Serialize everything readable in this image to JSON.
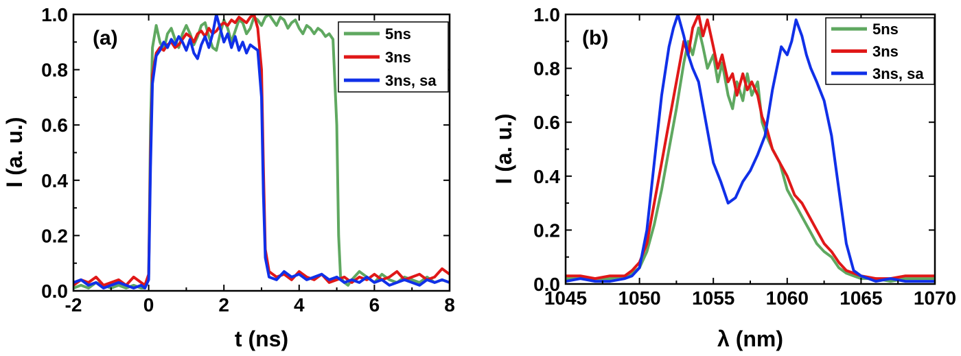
{
  "chart_data": [
    {
      "type": "line",
      "panel_label": "(a)",
      "xlabel": "t (ns)",
      "ylabel": "I (a. u.)",
      "xlim": [
        -2,
        8
      ],
      "ylim": [
        0,
        1.0
      ],
      "xticks": [
        -2,
        0,
        2,
        4,
        6,
        8
      ],
      "yticks": [
        0.0,
        0.2,
        0.4,
        0.6,
        0.8,
        1.0
      ],
      "xtick_labels": [
        "-2",
        "0",
        "2",
        "4",
        "6",
        "8"
      ],
      "ytick_labels": [
        "0.0",
        "0.2",
        "0.4",
        "0.6",
        "0.8",
        "1.0"
      ],
      "legend_position": "top-right",
      "grid": false,
      "series": [
        {
          "name": "5ns",
          "color": "#5fa860",
          "x": [
            -2.0,
            -1.8,
            -1.6,
            -1.4,
            -1.2,
            -1.0,
            -0.8,
            -0.6,
            -0.4,
            -0.2,
            -0.1,
            0.0,
            0.05,
            0.1,
            0.2,
            0.3,
            0.4,
            0.5,
            0.6,
            0.7,
            0.8,
            0.9,
            1.0,
            1.1,
            1.2,
            1.3,
            1.4,
            1.5,
            1.6,
            1.7,
            1.8,
            1.9,
            2.0,
            2.1,
            2.2,
            2.3,
            2.4,
            2.5,
            2.6,
            2.7,
            2.8,
            2.9,
            3.0,
            3.1,
            3.2,
            3.3,
            3.4,
            3.5,
            3.6,
            3.7,
            3.8,
            3.9,
            4.0,
            4.1,
            4.2,
            4.3,
            4.4,
            4.5,
            4.6,
            4.7,
            4.8,
            4.9,
            5.0,
            5.05,
            5.1,
            5.2,
            5.3,
            5.4,
            5.6,
            5.8,
            6.0,
            6.2,
            6.4,
            6.6,
            6.8,
            7.0,
            7.2,
            7.4,
            7.6,
            7.8,
            8.0
          ],
          "y": [
            0.01,
            0.02,
            0.01,
            0.03,
            0.02,
            0.01,
            0.02,
            0.01,
            0.02,
            0.01,
            0.01,
            0.05,
            0.6,
            0.88,
            0.96,
            0.9,
            0.87,
            0.93,
            0.95,
            0.91,
            0.88,
            0.93,
            0.96,
            0.93,
            0.89,
            0.92,
            0.96,
            0.97,
            0.92,
            0.88,
            0.87,
            0.93,
            0.98,
            0.95,
            0.9,
            0.94,
            0.98,
            0.97,
            0.93,
            0.95,
            0.99,
            0.98,
            0.96,
            0.99,
            1.0,
            0.98,
            0.96,
            0.99,
            0.98,
            0.95,
            0.97,
            0.98,
            0.95,
            0.93,
            0.96,
            0.95,
            0.93,
            0.95,
            0.94,
            0.92,
            0.93,
            0.91,
            0.6,
            0.2,
            0.05,
            0.03,
            0.02,
            0.04,
            0.07,
            0.05,
            0.03,
            0.06,
            0.04,
            0.03,
            0.05,
            0.04,
            0.03,
            0.05,
            0.03,
            0.04,
            0.03
          ]
        },
        {
          "name": "3ns",
          "color": "#e01818",
          "x": [
            -2.0,
            -1.8,
            -1.6,
            -1.4,
            -1.2,
            -1.0,
            -0.8,
            -0.6,
            -0.4,
            -0.2,
            -0.1,
            0.0,
            0.05,
            0.1,
            0.2,
            0.3,
            0.4,
            0.5,
            0.6,
            0.7,
            0.8,
            0.9,
            1.0,
            1.1,
            1.2,
            1.3,
            1.4,
            1.5,
            1.6,
            1.7,
            1.8,
            1.9,
            2.0,
            2.1,
            2.2,
            2.3,
            2.4,
            2.5,
            2.6,
            2.7,
            2.8,
            2.9,
            3.0,
            3.05,
            3.1,
            3.2,
            3.4,
            3.6,
            3.8,
            4.0,
            4.2,
            4.4,
            4.6,
            4.8,
            5.0,
            5.2,
            5.4,
            5.6,
            5.8,
            6.0,
            6.2,
            6.4,
            6.6,
            6.8,
            7.0,
            7.2,
            7.4,
            7.6,
            7.8,
            8.0
          ],
          "y": [
            0.02,
            0.04,
            0.03,
            0.05,
            0.02,
            0.03,
            0.04,
            0.02,
            0.05,
            0.03,
            0.02,
            0.06,
            0.5,
            0.78,
            0.86,
            0.88,
            0.87,
            0.89,
            0.9,
            0.88,
            0.89,
            0.91,
            0.93,
            0.92,
            0.9,
            0.93,
            0.94,
            0.92,
            0.95,
            0.93,
            0.94,
            0.96,
            0.97,
            0.96,
            0.98,
            0.97,
            0.99,
            0.98,
            0.97,
            0.99,
            1.0,
            0.95,
            0.8,
            0.45,
            0.15,
            0.07,
            0.05,
            0.06,
            0.04,
            0.07,
            0.05,
            0.04,
            0.06,
            0.03,
            0.04,
            0.05,
            0.03,
            0.05,
            0.04,
            0.06,
            0.04,
            0.05,
            0.07,
            0.04,
            0.05,
            0.06,
            0.04,
            0.05,
            0.08,
            0.06
          ]
        },
        {
          "name": "3ns, sa",
          "color": "#1030e8",
          "x": [
            -2.0,
            -1.8,
            -1.6,
            -1.4,
            -1.2,
            -1.0,
            -0.8,
            -0.6,
            -0.4,
            -0.2,
            -0.1,
            0.0,
            0.05,
            0.1,
            0.2,
            0.3,
            0.4,
            0.5,
            0.6,
            0.7,
            0.8,
            0.9,
            1.0,
            1.1,
            1.2,
            1.3,
            1.4,
            1.5,
            1.6,
            1.7,
            1.8,
            1.9,
            2.0,
            2.1,
            2.2,
            2.3,
            2.4,
            2.5,
            2.6,
            2.7,
            2.8,
            2.9,
            3.0,
            3.05,
            3.1,
            3.2,
            3.4,
            3.6,
            3.8,
            4.0,
            4.2,
            4.4,
            4.6,
            4.8,
            5.0,
            5.2,
            5.4,
            5.6,
            5.8,
            6.0,
            6.2,
            6.4,
            6.6,
            6.8,
            7.0,
            7.2,
            7.4,
            7.6,
            7.8,
            8.0
          ],
          "y": [
            0.03,
            0.04,
            0.02,
            0.03,
            0.01,
            0.02,
            0.03,
            0.02,
            0.01,
            0.02,
            0.01,
            0.04,
            0.45,
            0.75,
            0.85,
            0.87,
            0.9,
            0.88,
            0.91,
            0.89,
            0.92,
            0.9,
            0.87,
            0.91,
            0.86,
            0.84,
            0.89,
            0.92,
            0.88,
            0.93,
            1.0,
            0.95,
            0.9,
            0.93,
            0.88,
            0.92,
            0.87,
            0.9,
            0.86,
            0.89,
            0.88,
            0.87,
            0.7,
            0.35,
            0.12,
            0.05,
            0.04,
            0.07,
            0.05,
            0.06,
            0.04,
            0.05,
            0.06,
            0.04,
            0.05,
            0.03,
            0.04,
            0.03,
            0.05,
            0.03,
            0.04,
            0.02,
            0.03,
            0.04,
            0.03,
            0.02,
            0.04,
            0.03,
            0.04,
            0.03
          ]
        }
      ]
    },
    {
      "type": "line",
      "panel_label": "(b)",
      "xlabel": "λ (nm)",
      "ylabel": "I (a. u.)",
      "xlim": [
        1045,
        1070
      ],
      "ylim": [
        0,
        1.0
      ],
      "xticks": [
        1045,
        1050,
        1055,
        1060,
        1065,
        1070
      ],
      "yticks": [
        0.0,
        0.2,
        0.4,
        0.6,
        0.8,
        1.0
      ],
      "xtick_labels": [
        "1045",
        "1050",
        "1055",
        "1060",
        "1065",
        "1070"
      ],
      "ytick_labels": [
        "0.0",
        "0.2",
        "0.4",
        "0.6",
        "0.8",
        "1.0"
      ],
      "legend_position": "top-right",
      "grid": false,
      "series": [
        {
          "name": "5ns",
          "color": "#5fa860",
          "x": [
            1045,
            1046,
            1047,
            1048,
            1049,
            1049.5,
            1050,
            1050.5,
            1051,
            1051.5,
            1052,
            1052.5,
            1053,
            1053.3,
            1053.6,
            1054,
            1054.3,
            1054.6,
            1055,
            1055.3,
            1055.6,
            1056,
            1056.3,
            1056.6,
            1057,
            1057.3,
            1057.6,
            1058,
            1058.3,
            1058.6,
            1059,
            1059.5,
            1060,
            1060.5,
            1061,
            1061.5,
            1062,
            1062.5,
            1063,
            1063.5,
            1064,
            1064.5,
            1065,
            1066,
            1067,
            1068,
            1069,
            1070
          ],
          "y": [
            0.02,
            0.02,
            0.02,
            0.02,
            0.03,
            0.04,
            0.06,
            0.12,
            0.22,
            0.35,
            0.5,
            0.65,
            0.82,
            0.9,
            0.85,
            0.95,
            0.88,
            0.8,
            0.85,
            0.75,
            0.82,
            0.7,
            0.65,
            0.75,
            0.68,
            0.78,
            0.7,
            0.75,
            0.6,
            0.55,
            0.5,
            0.45,
            0.35,
            0.3,
            0.25,
            0.2,
            0.15,
            0.12,
            0.1,
            0.06,
            0.04,
            0.03,
            0.02,
            0.02,
            0.01,
            0.02,
            0.02,
            0.02
          ]
        },
        {
          "name": "3ns",
          "color": "#e01818",
          "x": [
            1045,
            1046,
            1047,
            1048,
            1049,
            1049.5,
            1050,
            1050.5,
            1051,
            1051.5,
            1052,
            1052.5,
            1053,
            1053.3,
            1053.6,
            1054,
            1054.3,
            1054.6,
            1055,
            1055.3,
            1055.6,
            1056,
            1056.3,
            1056.6,
            1057,
            1057.3,
            1057.6,
            1058,
            1058.3,
            1058.6,
            1059,
            1059.5,
            1060,
            1060.5,
            1061,
            1061.5,
            1062,
            1062.5,
            1063,
            1063.5,
            1064,
            1064.5,
            1065,
            1066,
            1067,
            1068,
            1069,
            1070
          ],
          "y": [
            0.03,
            0.03,
            0.02,
            0.03,
            0.03,
            0.05,
            0.08,
            0.15,
            0.3,
            0.45,
            0.6,
            0.75,
            0.9,
            0.85,
            0.95,
            1.0,
            0.92,
            0.98,
            0.88,
            0.8,
            0.85,
            0.75,
            0.78,
            0.7,
            0.78,
            0.72,
            0.75,
            0.7,
            0.62,
            0.58,
            0.5,
            0.45,
            0.4,
            0.33,
            0.3,
            0.25,
            0.2,
            0.15,
            0.12,
            0.08,
            0.05,
            0.04,
            0.03,
            0.02,
            0.02,
            0.03,
            0.03,
            0.03
          ]
        },
        {
          "name": "3ns, sa",
          "color": "#1030e8",
          "x": [
            1045,
            1046,
            1047,
            1048,
            1049,
            1049.5,
            1050,
            1050.5,
            1051,
            1051.5,
            1052,
            1052.3,
            1052.6,
            1053,
            1053.3,
            1053.6,
            1054,
            1054.5,
            1055,
            1055.5,
            1056,
            1056.5,
            1057,
            1057.5,
            1058,
            1058.5,
            1059,
            1059.3,
            1059.6,
            1060,
            1060.3,
            1060.6,
            1061,
            1061.3,
            1061.6,
            1062,
            1062.5,
            1063,
            1063.5,
            1064,
            1064.5,
            1065,
            1066,
            1067,
            1068,
            1069,
            1070
          ],
          "y": [
            0.01,
            0.02,
            0.01,
            0.01,
            0.02,
            0.03,
            0.06,
            0.2,
            0.45,
            0.7,
            0.88,
            0.95,
            1.0,
            0.92,
            0.85,
            0.8,
            0.75,
            0.6,
            0.45,
            0.38,
            0.3,
            0.32,
            0.38,
            0.42,
            0.48,
            0.55,
            0.72,
            0.8,
            0.88,
            0.85,
            0.9,
            0.98,
            0.92,
            0.85,
            0.8,
            0.75,
            0.68,
            0.55,
            0.35,
            0.15,
            0.05,
            0.03,
            0.01,
            0.02,
            0.01,
            0.01,
            0.01
          ]
        }
      ]
    }
  ]
}
